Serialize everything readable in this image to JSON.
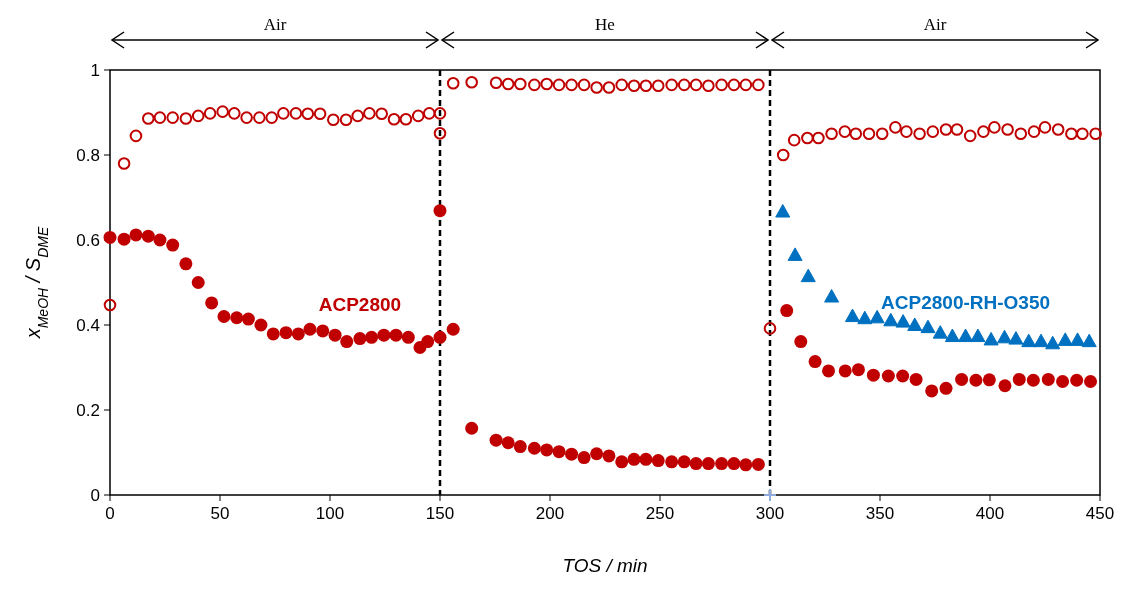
{
  "chart_data": {
    "type": "scatter",
    "xlabel": "TOS / min",
    "ylabel": "x$_{MeOH}$ / S$_{DME}$",
    "xlim": [
      0,
      450
    ],
    "xticks": [
      0,
      50,
      100,
      150,
      200,
      250,
      300,
      350,
      400,
      450
    ],
    "ylim": [
      0,
      1
    ],
    "yticks": [
      0,
      0.2,
      0.4,
      0.6,
      0.8,
      1
    ],
    "grid": false,
    "ref_lines": [
      {
        "axis": "x",
        "value": 150,
        "line_style": "dashed",
        "color": "#000000"
      },
      {
        "axis": "x",
        "value": 300,
        "line_style": "dashed",
        "color": "#000000"
      }
    ],
    "annotations": [
      "Air",
      "He",
      "Air"
    ],
    "series": [
      {
        "marker": "circle-open",
        "color": "#c00000",
        "x": [
          0,
          6.4,
          11.8,
          17.4,
          22.7,
          28.5,
          34.5,
          40.1,
          45.5,
          51.2,
          56.5,
          62.1,
          67.9,
          73.5,
          78.8,
          84.5,
          89.9,
          95.5,
          101.5,
          107.3,
          112.6,
          117.9,
          123.5,
          129.1,
          134.5,
          140.1,
          145.1,
          150,
          150,
          156,
          164.4,
          175.5,
          181,
          186.5,
          192.9,
          198.5,
          204.1,
          209.8,
          215.5,
          221.2,
          226.8,
          232.6,
          238.2,
          243.6,
          249.2,
          255.3,
          261,
          266.4,
          272,
          278,
          283.6,
          289,
          294.7,
          300,
          306,
          311,
          317,
          322,
          328,
          334,
          339,
          345,
          351,
          357,
          362,
          368,
          374,
          380,
          385,
          391,
          397,
          402,
          408,
          414,
          420,
          425,
          431,
          437,
          442,
          448
        ],
        "values": [
          0.447,
          0.78,
          0.845,
          0.886,
          0.888,
          0.888,
          0.886,
          0.892,
          0.898,
          0.902,
          0.898,
          0.888,
          0.888,
          0.888,
          0.898,
          0.898,
          0.897,
          0.897,
          0.883,
          0.883,
          0.892,
          0.898,
          0.897,
          0.884,
          0.884,
          0.892,
          0.898,
          0.898,
          0.851,
          0.969,
          0.971,
          0.97,
          0.967,
          0.967,
          0.965,
          0.967,
          0.965,
          0.965,
          0.965,
          0.959,
          0.959,
          0.965,
          0.963,
          0.963,
          0.963,
          0.965,
          0.965,
          0.965,
          0.963,
          0.965,
          0.965,
          0.965,
          0.965,
          0.392,
          0.8,
          0.835,
          0.84,
          0.84,
          0.85,
          0.855,
          0.85,
          0.85,
          0.85,
          0.865,
          0.855,
          0.85,
          0.855,
          0.86,
          0.86,
          0.845,
          0.855,
          0.865,
          0.86,
          0.85,
          0.855,
          0.865,
          0.86,
          0.85,
          0.85,
          0.85
        ]
      },
      {
        "name": "ACP2800",
        "marker": "circle",
        "color": "#c00000",
        "x": [
          0,
          6.4,
          11.8,
          17.4,
          22.7,
          28.5,
          34.5,
          40.1,
          46.2,
          51.8,
          57.6,
          62.9,
          68.6,
          74.2,
          80,
          85.6,
          90.9,
          96.7,
          102.3,
          107.6,
          113.6,
          118.9,
          124.5,
          130,
          135.6,
          140.9,
          144.4,
          150,
          150,
          156,
          164.4,
          175.5,
          181,
          186.5,
          192.9,
          198.5,
          204.1,
          209.8,
          215.5,
          221.2,
          226.8,
          232.6,
          238.2,
          243.6,
          249.2,
          255.3,
          261,
          266.4,
          272,
          278,
          283.6,
          289,
          294.7,
          307.6,
          314,
          320.5,
          326.6,
          334.2,
          340.2,
          347,
          353.8,
          360.3,
          366.4,
          373.5,
          380,
          387.1,
          393.6,
          399.7,
          406.8,
          413.3,
          419.7,
          426.5,
          433,
          439.4,
          445.7
        ],
        "values": [
          0.606,
          0.602,
          0.612,
          0.609,
          0.6,
          0.588,
          0.544,
          0.5,
          0.452,
          0.42,
          0.417,
          0.414,
          0.4,
          0.379,
          0.382,
          0.379,
          0.39,
          0.386,
          0.376,
          0.361,
          0.368,
          0.371,
          0.376,
          0.376,
          0.371,
          0.347,
          0.361,
          0.371,
          0.669,
          0.39,
          0.157,
          0.129,
          0.123,
          0.114,
          0.11,
          0.106,
          0.102,
          0.096,
          0.088,
          0.097,
          0.092,
          0.078,
          0.084,
          0.084,
          0.081,
          0.078,
          0.078,
          0.074,
          0.074,
          0.074,
          0.074,
          0.071,
          0.072,
          0.434,
          0.361,
          0.314,
          0.292,
          0.292,
          0.295,
          0.282,
          0.28,
          0.28,
          0.272,
          0.245,
          0.251,
          0.272,
          0.27,
          0.271,
          0.257,
          0.272,
          0.27,
          0.272,
          0.267,
          0.27,
          0.267
        ]
      },
      {
        "name": "ACP2800-RH-O350",
        "marker": "triangle",
        "color": "#0070c0",
        "x": [
          305.8,
          311.4,
          317.4,
          328,
          337.5,
          343.1,
          348.7,
          354.9,
          360.5,
          365.8,
          371.8,
          377.4,
          382.9,
          388.9,
          394.5,
          400.5,
          406.6,
          411.8,
          417.6,
          423.2,
          428.5,
          434.2,
          439.8,
          445.1
        ],
        "values": [
          0.667,
          0.565,
          0.515,
          0.467,
          0.421,
          0.416,
          0.418,
          0.411,
          0.408,
          0.4,
          0.395,
          0.382,
          0.374,
          0.374,
          0.374,
          0.366,
          0.371,
          0.368,
          0.362,
          0.362,
          0.357,
          0.365,
          0.365,
          0.362
        ]
      },
      {
        "marker": "cross",
        "color": "#8faadc",
        "x": [
          300
        ],
        "values": [
          0
        ]
      }
    ]
  }
}
